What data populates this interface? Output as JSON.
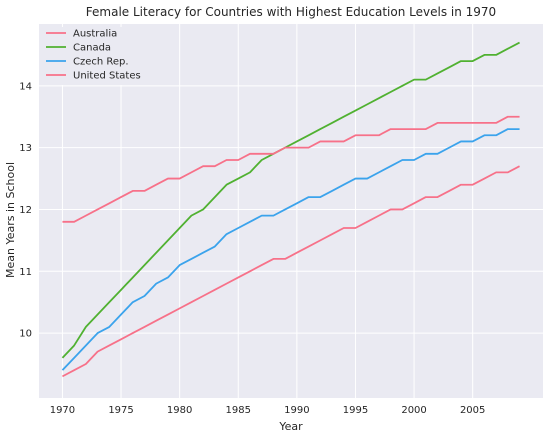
{
  "chart_data": {
    "type": "line",
    "title": "Female Literacy for Countries with Highest Education Levels in 1970",
    "xlabel": "Year",
    "ylabel": "Mean Years in School",
    "xlim": [
      1968,
      2011
    ],
    "ylim": [
      8.95,
      15.0
    ],
    "xticks": [
      1970,
      1975,
      1980,
      1985,
      1990,
      1995,
      2000,
      2005
    ],
    "yticks": [
      10,
      11,
      12,
      13,
      14
    ],
    "grid": true,
    "legend_position": "top-left",
    "x": [
      1970,
      1971,
      1972,
      1973,
      1974,
      1975,
      1976,
      1977,
      1978,
      1979,
      1980,
      1981,
      1982,
      1983,
      1984,
      1985,
      1986,
      1987,
      1988,
      1989,
      1990,
      1991,
      1992,
      1993,
      1994,
      1995,
      1996,
      1997,
      1998,
      1999,
      2000,
      2001,
      2002,
      2003,
      2004,
      2005,
      2006,
      2007,
      2008,
      2009
    ],
    "series": [
      {
        "name": "Australia",
        "color": "#f77189",
        "values": [
          9.3,
          9.4,
          9.5,
          9.7,
          9.8,
          9.9,
          10.0,
          10.1,
          10.2,
          10.3,
          10.4,
          10.5,
          10.6,
          10.7,
          10.8,
          10.9,
          11.0,
          11.1,
          11.2,
          11.2,
          11.3,
          11.4,
          11.5,
          11.6,
          11.7,
          11.7,
          11.8,
          11.9,
          12.0,
          12.0,
          12.1,
          12.2,
          12.2,
          12.3,
          12.4,
          12.4,
          12.5,
          12.6,
          12.6,
          12.7
        ]
      },
      {
        "name": "Canada",
        "color": "#50b131",
        "values": [
          9.6,
          9.8,
          10.1,
          10.3,
          10.5,
          10.7,
          10.9,
          11.1,
          11.3,
          11.5,
          11.7,
          11.9,
          12.0,
          12.2,
          12.4,
          12.5,
          12.6,
          12.8,
          12.9,
          13.0,
          13.1,
          13.2,
          13.3,
          13.4,
          13.5,
          13.6,
          13.7,
          13.8,
          13.9,
          14.0,
          14.1,
          14.1,
          14.2,
          14.3,
          14.4,
          14.4,
          14.5,
          14.5,
          14.6,
          14.7
        ]
      },
      {
        "name": "Czech Rep.",
        "color": "#3ba3ec",
        "values": [
          9.4,
          9.6,
          9.8,
          10.0,
          10.1,
          10.3,
          10.5,
          10.6,
          10.8,
          10.9,
          11.1,
          11.2,
          11.3,
          11.4,
          11.6,
          11.7,
          11.8,
          11.9,
          11.9,
          12.0,
          12.1,
          12.2,
          12.2,
          12.3,
          12.4,
          12.5,
          12.5,
          12.6,
          12.7,
          12.8,
          12.8,
          12.9,
          12.9,
          13.0,
          13.1,
          13.1,
          13.2,
          13.2,
          13.3,
          13.3
        ]
      },
      {
        "name": "United States",
        "color": "#f77189",
        "values": [
          11.8,
          11.8,
          11.9,
          12.0,
          12.1,
          12.2,
          12.3,
          12.3,
          12.4,
          12.5,
          12.5,
          12.6,
          12.7,
          12.7,
          12.8,
          12.8,
          12.9,
          12.9,
          12.9,
          13.0,
          13.0,
          13.0,
          13.1,
          13.1,
          13.1,
          13.2,
          13.2,
          13.2,
          13.3,
          13.3,
          13.3,
          13.3,
          13.4,
          13.4,
          13.4,
          13.4,
          13.4,
          13.4,
          13.5,
          13.5
        ]
      }
    ]
  }
}
